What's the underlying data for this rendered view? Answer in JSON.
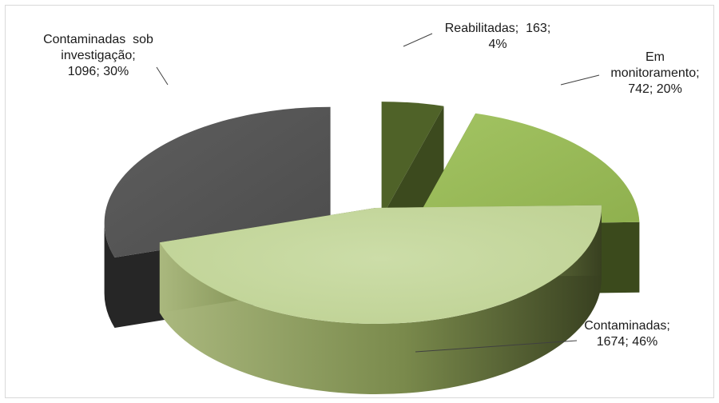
{
  "chart_data": {
    "type": "pie",
    "style": "3d-exploded",
    "title": "",
    "slices": [
      {
        "name": "Reabilitadas",
        "value": 163,
        "percent": "4%",
        "color": "#4f6228",
        "label_lines": [
          "Reabilitadas;  163;",
          "4%"
        ]
      },
      {
        "name": "Em monitoramento",
        "value": 742,
        "percent": "20%",
        "color": "#9bbb59",
        "label_lines": [
          "Em",
          "monitoramento;",
          "742; 20%"
        ]
      },
      {
        "name": "Contaminadas",
        "value": 1674,
        "percent": "46%",
        "color": "#c3d69b",
        "label_lines": [
          "Contaminadas;",
          "1674; 46%"
        ]
      },
      {
        "name": "Contaminadas sob investigação",
        "value": 1096,
        "percent": "30%",
        "color": "#595959",
        "label_lines": [
          "Contaminadas  sob",
          "investigação;",
          "1096; 30%"
        ]
      }
    ]
  }
}
